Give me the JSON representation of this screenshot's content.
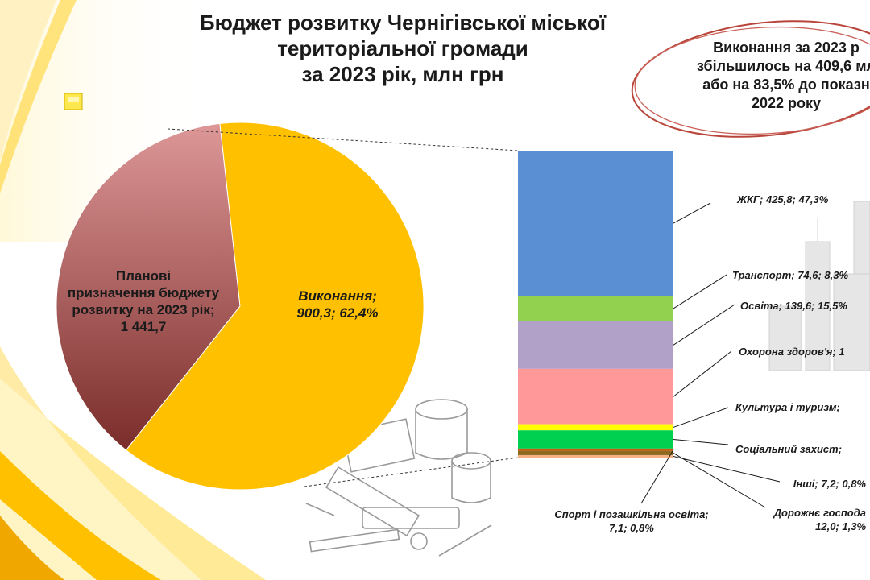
{
  "title": {
    "line1": "Бюджет розвитку Чернігівської міської",
    "line2": "територіальної громади",
    "line3": "за 2023 рік, млн грн"
  },
  "note": {
    "line1": "Виконання за 2023 р",
    "line2": "збільшилось на 409,6 мл",
    "line3": "або на 83,5% до показн",
    "line4": "2022 року"
  },
  "colors": {
    "background_yellow": "#ffc000",
    "ellipse_stroke": "#b9453a",
    "pie_planned_top": "#d98b8b",
    "pie_planned_bottom": "#7b2f2c",
    "pie_executed": "#ffc000"
  },
  "chart_data": [
    {
      "type": "pie",
      "slices": [
        {
          "label_lines": [
            "Виконання;",
            "900,3; 62,4%"
          ],
          "value": 900.3,
          "percent": 62.4,
          "color": "#ffc000",
          "italic": true
        },
        {
          "label_lines": [
            "Планові",
            "призначення бюджету",
            "розвитку на 2023 рік;",
            "1 441,7"
          ],
          "value": 1441.7,
          "color": "#b3504c",
          "italic": false
        }
      ]
    },
    {
      "type": "bar",
      "stacked": true,
      "total": 900.3,
      "segments": [
        {
          "label": "ЖКГ;  425,8;  47,3%",
          "value": 425.8,
          "color": "#5b8fd4"
        },
        {
          "label": "Транспорт;  74,6;  8,3%",
          "value": 74.6,
          "color": "#92d050"
        },
        {
          "label": "Освіта;  139,6;  15,5%",
          "value": 139.6,
          "color": "#b1a0c7"
        },
        {
          "label": "Охорона здоров'я;  1",
          "value": 162.5,
          "color": "#ff9999"
        },
        {
          "label": "Культура і туризм;",
          "value": 18.0,
          "color": "#ffff00"
        },
        {
          "label": "Соціальний захист;",
          "value": 53.5,
          "color": "#00d050"
        },
        {
          "label": "Спорт і позашкільна освіта;  7,1;  0,8%",
          "value": 7.1,
          "color": "#c55a11"
        },
        {
          "label": "Дорожнє господа  12,0;  1,3%",
          "value": 12.0,
          "color": "#8c6a1f"
        },
        {
          "label": "Інші;  7,2;  0,8%",
          "value": 7.2,
          "color": "#f4b183"
        }
      ]
    }
  ]
}
